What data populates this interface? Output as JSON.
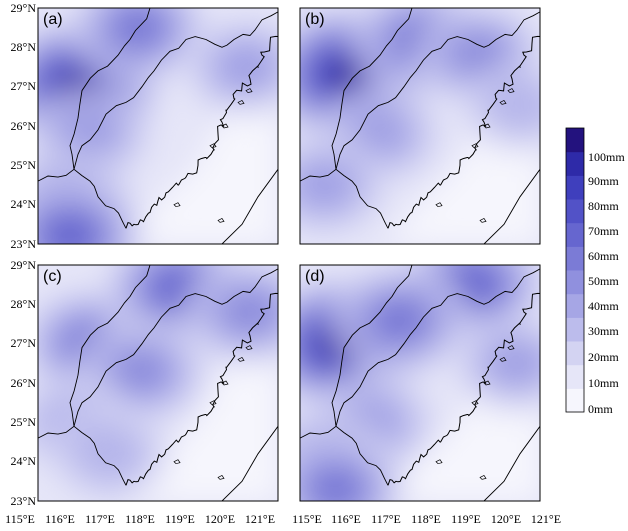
{
  "figure": {
    "panels": [
      {
        "label": "(a)",
        "hotspots": [
          [
            116.0,
            27.0,
            0.95
          ],
          [
            117.5,
            28.5,
            0.55
          ],
          [
            116.3,
            25.8,
            0.35
          ],
          [
            115.7,
            24.0,
            0.55
          ],
          [
            115.8,
            23.2,
            0.7
          ],
          [
            120.2,
            27.5,
            0.35
          ]
        ]
      },
      {
        "label": "(b)",
        "hotspots": [
          [
            116.2,
            27.3,
            1.0
          ],
          [
            118.0,
            28.2,
            0.6
          ],
          [
            119.5,
            27.8,
            0.45
          ],
          [
            117.0,
            25.8,
            0.35
          ],
          [
            115.6,
            24.5,
            0.4
          ],
          [
            120.5,
            26.5,
            0.25
          ]
        ]
      },
      {
        "label": "(c)",
        "hotspots": [
          [
            116.3,
            27.0,
            0.55
          ],
          [
            118.5,
            28.4,
            0.7
          ],
          [
            120.3,
            27.8,
            0.5
          ],
          [
            117.6,
            26.3,
            0.45
          ],
          [
            115.8,
            25.0,
            0.3
          ],
          [
            116.8,
            24.2,
            0.3
          ]
        ]
      },
      {
        "label": "(d)",
        "hotspots": [
          [
            116.0,
            27.0,
            0.95
          ],
          [
            119.3,
            28.5,
            0.7
          ],
          [
            117.5,
            27.6,
            0.6
          ],
          [
            116.8,
            25.0,
            0.4
          ],
          [
            115.6,
            24.0,
            0.45
          ],
          [
            115.9,
            23.3,
            0.55
          ],
          [
            120.4,
            26.5,
            0.35
          ]
        ]
      }
    ],
    "lat_ticks": [
      "29°N",
      "28°N",
      "27°N",
      "26°N",
      "25°N",
      "24°N",
      "23°N"
    ],
    "lon_ticks_left": [
      "115°E",
      "116°E",
      "117°E",
      "118°E",
      "119°E",
      "120°E",
      "121°E"
    ],
    "lon_ticks_right": [
      "115°E",
      "116°E",
      "117°E",
      "118°E",
      "119°E",
      "120°E",
      "121°E"
    ],
    "lon_range": [
      115,
      121
    ],
    "lat_range": [
      23,
      29
    ]
  },
  "colorbar": {
    "labels": [
      "100mm",
      "90mm",
      "80mm",
      "70mm",
      "60mm",
      "50mm",
      "40mm",
      "30mm",
      "20mm",
      "10mm",
      "0mm"
    ],
    "colors": [
      "#f6f6fd",
      "#e6e6f8",
      "#d3d3f2",
      "#bcbcec",
      "#a6a6e5",
      "#9090de",
      "#7b7bd6",
      "#6666cf",
      "#5252c7",
      "#3f3fbd",
      "#2e2aa8",
      "#23127e"
    ]
  }
}
